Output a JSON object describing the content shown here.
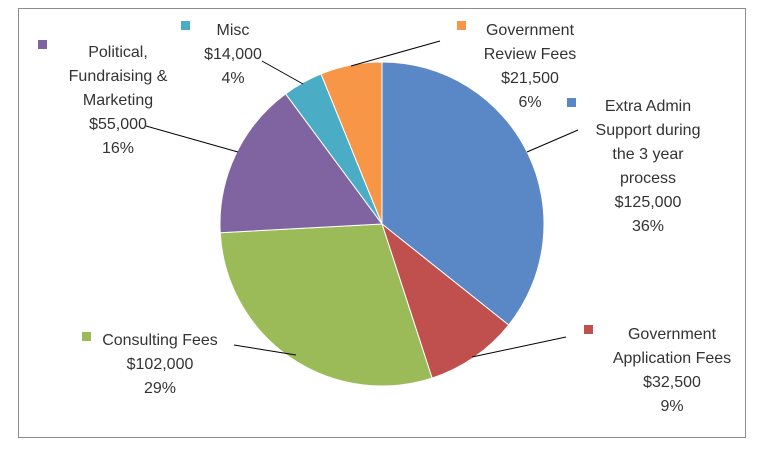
{
  "chart_data": {
    "type": "pie",
    "title": "",
    "slices": [
      {
        "label": [
          "Extra Admin",
          "Support during",
          "the 3 year",
          "process"
        ],
        "amount": "$125,000",
        "percent": "36%",
        "value": 125000,
        "color": "#5a87c5"
      },
      {
        "label": [
          "Government",
          "Application Fees"
        ],
        "amount": "$32,500",
        "percent": "9%",
        "value": 32500,
        "color": "#c0504d"
      },
      {
        "label": [
          "Consulting Fees"
        ],
        "amount": "$102,000",
        "percent": "29%",
        "value": 102000,
        "color": "#9bbb59"
      },
      {
        "label": [
          "Political,",
          "Fundraising &",
          "Marketing"
        ],
        "amount": "$55,000",
        "percent": "16%",
        "value": 55000,
        "color": "#8064a2"
      },
      {
        "label": [
          "Misc"
        ],
        "amount": "$14,000",
        "percent": "4%",
        "value": 14000,
        "color": "#4bacc6"
      },
      {
        "label": [
          "Government",
          "Review Fees"
        ],
        "amount": "$21,500",
        "percent": "6%",
        "value": 21500,
        "color": "#f79646"
      }
    ]
  }
}
